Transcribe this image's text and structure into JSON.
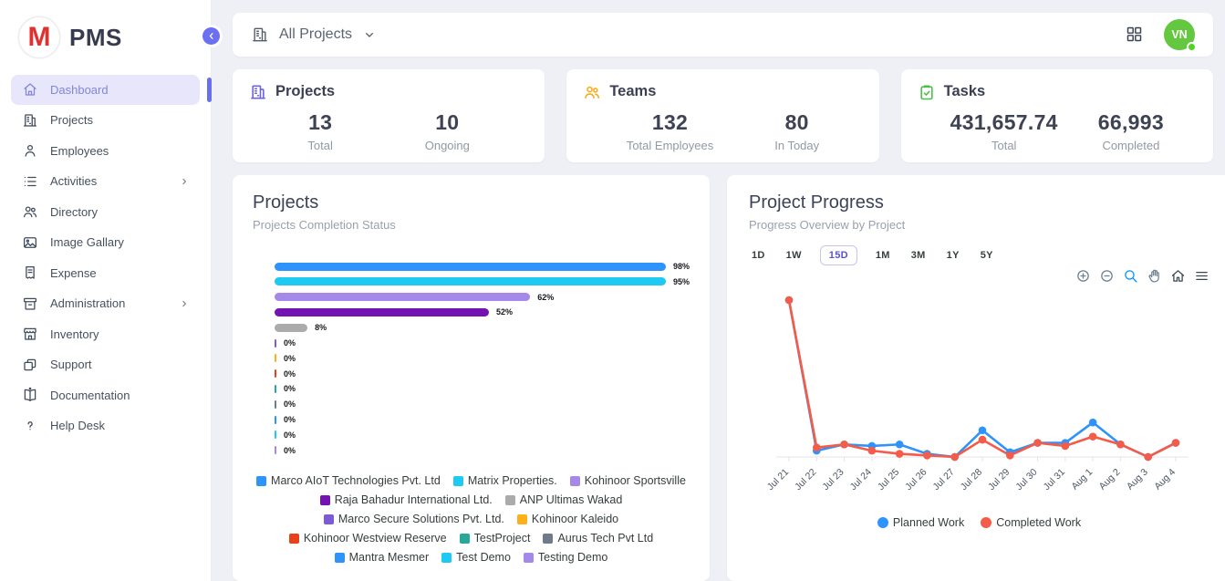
{
  "app": {
    "logo_letter": "M",
    "title": "PMS"
  },
  "sidebar": {
    "items": [
      {
        "label": "Dashboard",
        "icon": "home",
        "active": true,
        "chevron": false
      },
      {
        "label": "Projects",
        "icon": "building",
        "active": false,
        "chevron": false
      },
      {
        "label": "Employees",
        "icon": "person",
        "active": false,
        "chevron": false
      },
      {
        "label": "Activities",
        "icon": "list",
        "active": false,
        "chevron": true
      },
      {
        "label": "Directory",
        "icon": "people",
        "active": false,
        "chevron": false
      },
      {
        "label": "Image Gallary",
        "icon": "image",
        "active": false,
        "chevron": false
      },
      {
        "label": "Expense",
        "icon": "receipt",
        "active": false,
        "chevron": false
      },
      {
        "label": "Administration",
        "icon": "archive",
        "active": false,
        "chevron": true
      },
      {
        "label": "Inventory",
        "icon": "store",
        "active": false,
        "chevron": false
      },
      {
        "label": "Support",
        "icon": "copy",
        "active": false,
        "chevron": false
      },
      {
        "label": "Documentation",
        "icon": "book",
        "active": false,
        "chevron": false
      },
      {
        "label": "Help Desk",
        "icon": "question",
        "active": false,
        "chevron": false
      }
    ]
  },
  "topbar": {
    "scope_label": "All Projects",
    "avatar_initials": "VN"
  },
  "stats": [
    {
      "icon": "building",
      "icon_color": "#6c63e8",
      "title": "Projects",
      "cols": [
        {
          "value": "13",
          "label": "Total"
        },
        {
          "value": "10",
          "label": "Ongoing"
        }
      ]
    },
    {
      "icon": "people",
      "icon_color": "#f8ab1c",
      "title": "Teams",
      "cols": [
        {
          "value": "132",
          "label": "Total Employees"
        },
        {
          "value": "80",
          "label": "In Today"
        }
      ]
    },
    {
      "icon": "clipboard-check",
      "icon_color": "#4cbf4b",
      "title": "Tasks",
      "cols": [
        {
          "value": "431,657.74",
          "label": "Total"
        },
        {
          "value": "66,993",
          "label": "Completed"
        }
      ]
    }
  ],
  "projects_chart": {
    "title": "Projects",
    "subtitle": "Projects Completion Status",
    "chart_data": {
      "type": "bar",
      "orientation": "horizontal",
      "value_unit": "%",
      "xlim": [
        0,
        100
      ],
      "data_labels": true,
      "legend_position": "bottom",
      "series": [
        {
          "name": "Marco AIoT Technologies Pvt. Ltd",
          "value": 98,
          "label": "98%",
          "color": "#2e93fa"
        },
        {
          "name": "Matrix Properties.",
          "value": 95,
          "label": "95%",
          "color": "#1ec9f2"
        },
        {
          "name": "Kohinoor Sportsville",
          "value": 62,
          "label": "62%",
          "color": "#a589e8"
        },
        {
          "name": "Raja Bahadur International Ltd.",
          "value": 52,
          "label": "52%",
          "color": "#7512b2"
        },
        {
          "name": "ANP Ultimas Wakad",
          "value": 8,
          "label": "8%",
          "color": "#ababab"
        },
        {
          "name": "Marco Secure Solutions Pvt. Ltd.",
          "value": 0,
          "label": "0%",
          "color": "#7b5cd6"
        },
        {
          "name": "Kohinoor Kaleido",
          "value": 0,
          "label": "0%",
          "color": "#feb019"
        },
        {
          "name": "Kohinoor Westview Reserve",
          "value": 0,
          "label": "0%",
          "color": "#e8421d"
        },
        {
          "name": "TestProject",
          "value": 0,
          "label": "0%",
          "color": "#2ba69a"
        },
        {
          "name": "Aurus Tech Pvt Ltd",
          "value": 0,
          "label": "0%",
          "color": "#6e7b8a"
        },
        {
          "name": "Mantra Mesmer",
          "value": 0,
          "label": "0%",
          "color": "#2e93fa"
        },
        {
          "name": "Test Demo",
          "value": 0,
          "label": "0%",
          "color": "#1ec9f2"
        },
        {
          "name": "Testing Demo",
          "value": 0,
          "label": "0%",
          "color": "#a589e8"
        }
      ]
    }
  },
  "progress_chart": {
    "title": "Project Progress",
    "subtitle": "Progress Overview by Project",
    "ranges": [
      "1D",
      "1W",
      "15D",
      "1M",
      "3M",
      "1Y",
      "5Y"
    ],
    "selected_range": "15D",
    "toolbar": [
      "zoom-in",
      "zoom-out",
      "selection-zoom",
      "pan",
      "reset-home",
      "menu"
    ],
    "chart_data": {
      "type": "line",
      "x": [
        "Jul 21",
        "Jul 22",
        "Jul 23",
        "Jul 24",
        "Jul 25",
        "Jul 26",
        "Jul 27",
        "Jul 28",
        "Jul 29",
        "Jul 30",
        "Jul 31",
        "Aug 1",
        "Aug 2",
        "Aug 3",
        "Aug 4"
      ],
      "y_axis_shown": false,
      "values_note": "relative heights estimated from pixels; no y-axis labels shown",
      "ylim": [
        0,
        100
      ],
      "legend_position": "bottom",
      "series": [
        {
          "name": "Planned Work",
          "color": "#2e93fa",
          "values": [
            100,
            4,
            8,
            7,
            8,
            2,
            0,
            17,
            3,
            9,
            9,
            22,
            8,
            0,
            9
          ]
        },
        {
          "name": "Completed Work",
          "color": "#f45b48",
          "values": [
            100,
            6,
            8,
            4,
            2,
            1,
            0,
            11,
            1,
            9,
            7,
            13,
            8,
            0,
            9
          ]
        }
      ]
    }
  }
}
